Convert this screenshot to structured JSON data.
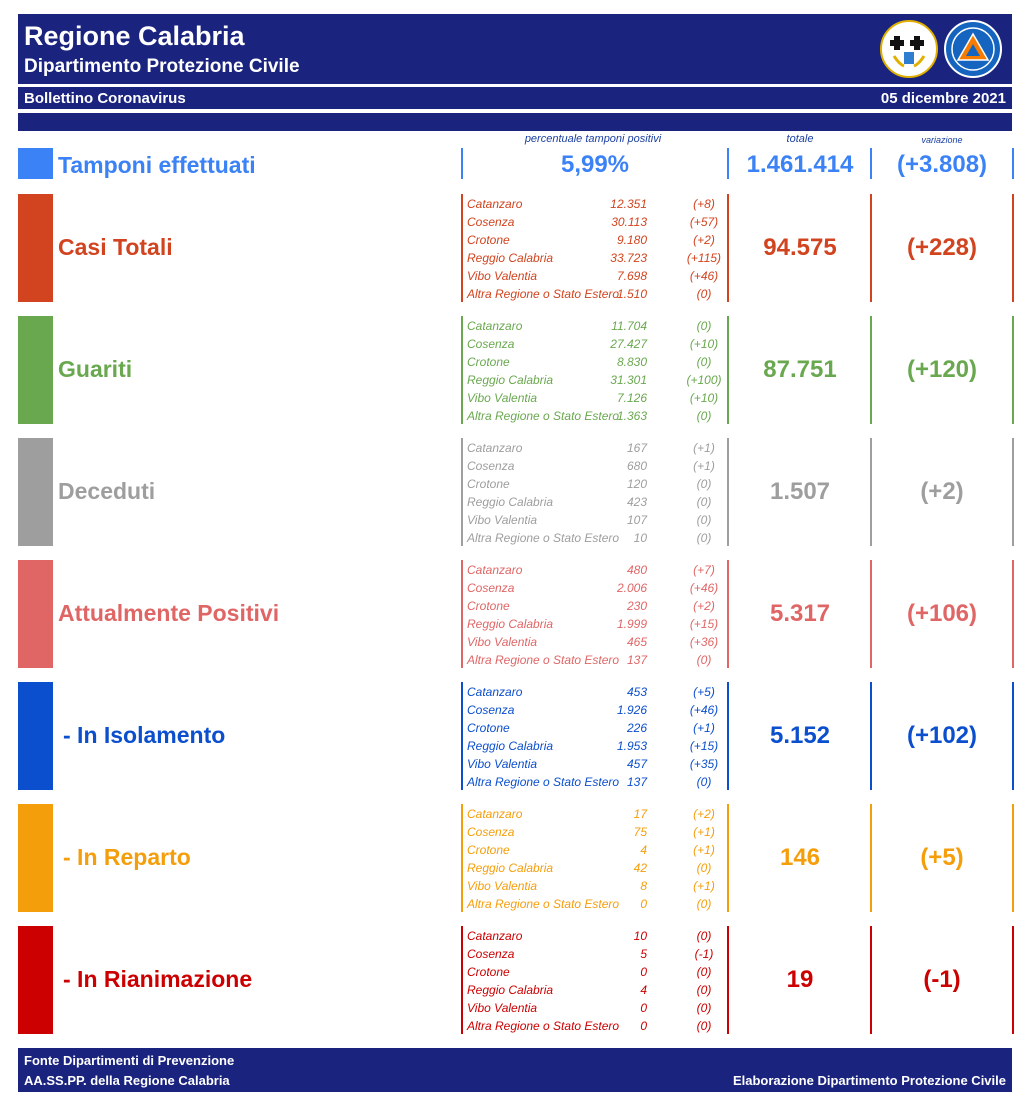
{
  "header": {
    "title": "Regione Calabria",
    "subtitle": "Dipartimento Protezione Civile",
    "bulletin": "Bollettino Coronavirus",
    "date": "05 dicembre 2021",
    "navy": "#1a237e"
  },
  "column_headers": {
    "percent": "percentuale tamponi positivi",
    "total": "totale",
    "variation": "variazione"
  },
  "tamponi": {
    "label": "Tamponi effettuati",
    "percent": "5,99%",
    "total": "1.461.414",
    "variation": "(+3.808)",
    "color": "#3b82f6"
  },
  "sections": [
    {
      "label": "Casi Totali",
      "total": "94.575",
      "variation": "(+228)",
      "color": "#d1441f",
      "provinces": [
        {
          "name": "Catanzaro",
          "value": "12.351",
          "var": "(+8)"
        },
        {
          "name": "Cosenza",
          "value": "30.113",
          "var": "(+57)"
        },
        {
          "name": "Crotone",
          "value": "9.180",
          "var": "(+2)"
        },
        {
          "name": "Reggio Calabria",
          "value": "33.723",
          "var": "(+115)"
        },
        {
          "name": "Vibo Valentia",
          "value": "7.698",
          "var": "(+46)"
        },
        {
          "name": "Altra Regione o Stato Estero",
          "value": "1.510",
          "var": "(0)"
        }
      ]
    },
    {
      "label": "Guariti",
      "total": "87.751",
      "variation": "(+120)",
      "color": "#6aa84f",
      "provinces": [
        {
          "name": "Catanzaro",
          "value": "11.704",
          "var": "(0)"
        },
        {
          "name": "Cosenza",
          "value": "27.427",
          "var": "(+10)"
        },
        {
          "name": "Crotone",
          "value": "8.830",
          "var": "(0)"
        },
        {
          "name": "Reggio Calabria",
          "value": "31.301",
          "var": "(+100)"
        },
        {
          "name": "Vibo Valentia",
          "value": "7.126",
          "var": "(+10)"
        },
        {
          "name": "Altra Regione o Stato Estero",
          "value": "1.363",
          "var": "(0)"
        }
      ]
    },
    {
      "label": "Deceduti",
      "total": "1.507",
      "variation": "(+2)",
      "color": "#9e9e9e",
      "provinces": [
        {
          "name": "Catanzaro",
          "value": "167",
          "var": "(+1)"
        },
        {
          "name": "Cosenza",
          "value": "680",
          "var": "(+1)"
        },
        {
          "name": "Crotone",
          "value": "120",
          "var": "(0)"
        },
        {
          "name": "Reggio Calabria",
          "value": "423",
          "var": "(0)"
        },
        {
          "name": "Vibo Valentia",
          "value": "107",
          "var": "(0)"
        },
        {
          "name": "Altra Regione o Stato Estero",
          "value": "10",
          "var": "(0)"
        }
      ]
    },
    {
      "label": "Attualmente Positivi",
      "total": "5.317",
      "variation": "(+106)",
      "color": "#e06666",
      "provinces": [
        {
          "name": "Catanzaro",
          "value": "480",
          "var": "(+7)"
        },
        {
          "name": "Cosenza",
          "value": "2.006",
          "var": "(+46)"
        },
        {
          "name": "Crotone",
          "value": "230",
          "var": "(+2)"
        },
        {
          "name": "Reggio Calabria",
          "value": "1.999",
          "var": "(+15)"
        },
        {
          "name": "Vibo Valentia",
          "value": "465",
          "var": "(+36)"
        },
        {
          "name": "Altra Regione o Stato Estero",
          "value": "137",
          "var": "(0)"
        }
      ]
    },
    {
      "label": "- In Isolamento",
      "total": "5.152",
      "variation": "(+102)",
      "color": "#0b4fce",
      "provinces": [
        {
          "name": "Catanzaro",
          "value": "453",
          "var": "(+5)"
        },
        {
          "name": "Cosenza",
          "value": "1.926",
          "var": "(+46)"
        },
        {
          "name": "Crotone",
          "value": "226",
          "var": "(+1)"
        },
        {
          "name": "Reggio Calabria",
          "value": "1.953",
          "var": "(+15)"
        },
        {
          "name": "Vibo Valentia",
          "value": "457",
          "var": "(+35)"
        },
        {
          "name": "Altra Regione o Stato Estero",
          "value": "137",
          "var": "(0)"
        }
      ]
    },
    {
      "label": "- In Reparto",
      "total": "146",
      "variation": "(+5)",
      "color": "#f59e0b",
      "provinces": [
        {
          "name": "Catanzaro",
          "value": "17",
          "var": "(+2)"
        },
        {
          "name": "Cosenza",
          "value": "75",
          "var": "(+1)"
        },
        {
          "name": "Crotone",
          "value": "4",
          "var": "(+1)"
        },
        {
          "name": "Reggio Calabria",
          "value": "42",
          "var": "(0)"
        },
        {
          "name": "Vibo Valentia",
          "value": "8",
          "var": "(+1)"
        },
        {
          "name": "Altra Regione o Stato Estero",
          "value": "0",
          "var": "(0)"
        }
      ]
    },
    {
      "label": "- In Rianimazione",
      "total": "19",
      "variation": "(-1)",
      "color": "#cc0000",
      "provinces": [
        {
          "name": "Catanzaro",
          "value": "10",
          "var": "(0)"
        },
        {
          "name": "Cosenza",
          "value": "5",
          "var": "(-1)"
        },
        {
          "name": "Crotone",
          "value": "0",
          "var": "(0)"
        },
        {
          "name": "Reggio Calabria",
          "value": "4",
          "var": "(0)"
        },
        {
          "name": "Vibo Valentia",
          "value": "0",
          "var": "(0)"
        },
        {
          "name": "Altra Regione o Stato Estero",
          "value": "0",
          "var": "(0)"
        }
      ]
    }
  ],
  "footer": {
    "source_line1": "Fonte Dipartimenti di Prevenzione",
    "source_line2": "AA.SS.PP.  della Regione Calabria",
    "credit": "Elaborazione Dipartimento Protezione Civile"
  }
}
